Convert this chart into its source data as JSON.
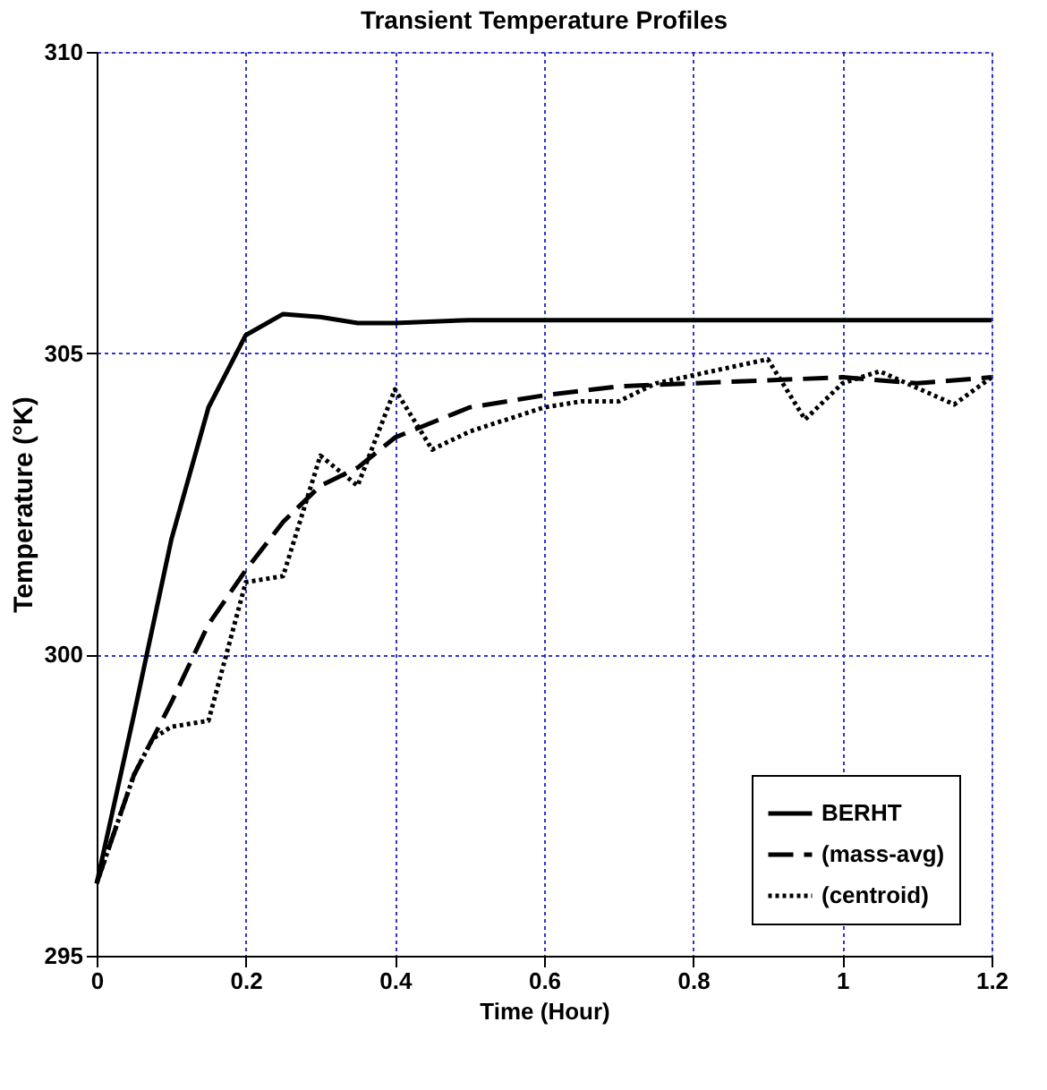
{
  "chart_data": {
    "type": "line",
    "title": "Transient Temperature Profiles",
    "xlabel": "Time (Hour)",
    "ylabel": "Temperature (°K)",
    "xlim": [
      0,
      1.2
    ],
    "xticks": [
      0,
      0.2,
      0.4,
      0.6,
      0.8,
      1,
      1.2
    ],
    "ylim": [
      295,
      310
    ],
    "yticks": [
      295,
      300,
      305,
      310
    ],
    "grid": true,
    "legend": "bottom right",
    "marker": "none",
    "series": [
      {
        "name": "BERHT",
        "color": "#000000",
        "line_style": "solid",
        "x": [
          0,
          0.05,
          0.1,
          0.15,
          0.2,
          0.25,
          0.3,
          0.35,
          0.4,
          0.5,
          0.6,
          0.8,
          1.0,
          1.2
        ],
        "values": [
          296.2,
          299,
          301.9,
          304.1,
          305.3,
          305.65,
          305.6,
          305.5,
          305.5,
          305.55,
          305.55,
          305.55,
          305.55,
          305.55
        ]
      },
      {
        "name": "(mass-avg)",
        "color": "#000000",
        "line_style": "dashed",
        "x": [
          0,
          0.05,
          0.075,
          0.1,
          0.15,
          0.2,
          0.25,
          0.3,
          0.35,
          0.4,
          0.5,
          0.6,
          0.7,
          0.8,
          0.9,
          1.0,
          1.1,
          1.2
        ],
        "values": [
          296.2,
          298,
          298.6,
          299.2,
          300.5,
          301.4,
          302.2,
          302.8,
          303.1,
          303.6,
          304.1,
          304.3,
          304.45,
          304.5,
          304.55,
          304.6,
          304.5,
          304.6
        ]
      },
      {
        "name": "(centroid)",
        "color": "#000000",
        "line_style": "dotted",
        "x": [
          0,
          0.05,
          0.075,
          0.1,
          0.15,
          0.2,
          0.25,
          0.3,
          0.35,
          0.4,
          0.45,
          0.5,
          0.6,
          0.65,
          0.7,
          0.75,
          0.9,
          0.95,
          1.0,
          1.05,
          1.15,
          1.2
        ],
        "values": [
          296.2,
          298,
          298.6,
          298.8,
          298.9,
          301.2,
          301.3,
          303.3,
          302.8,
          304.4,
          303.4,
          303.7,
          304.1,
          304.2,
          304.2,
          304.5,
          304.9,
          303.9,
          304.5,
          304.7,
          304.15,
          304.6
        ]
      }
    ]
  }
}
